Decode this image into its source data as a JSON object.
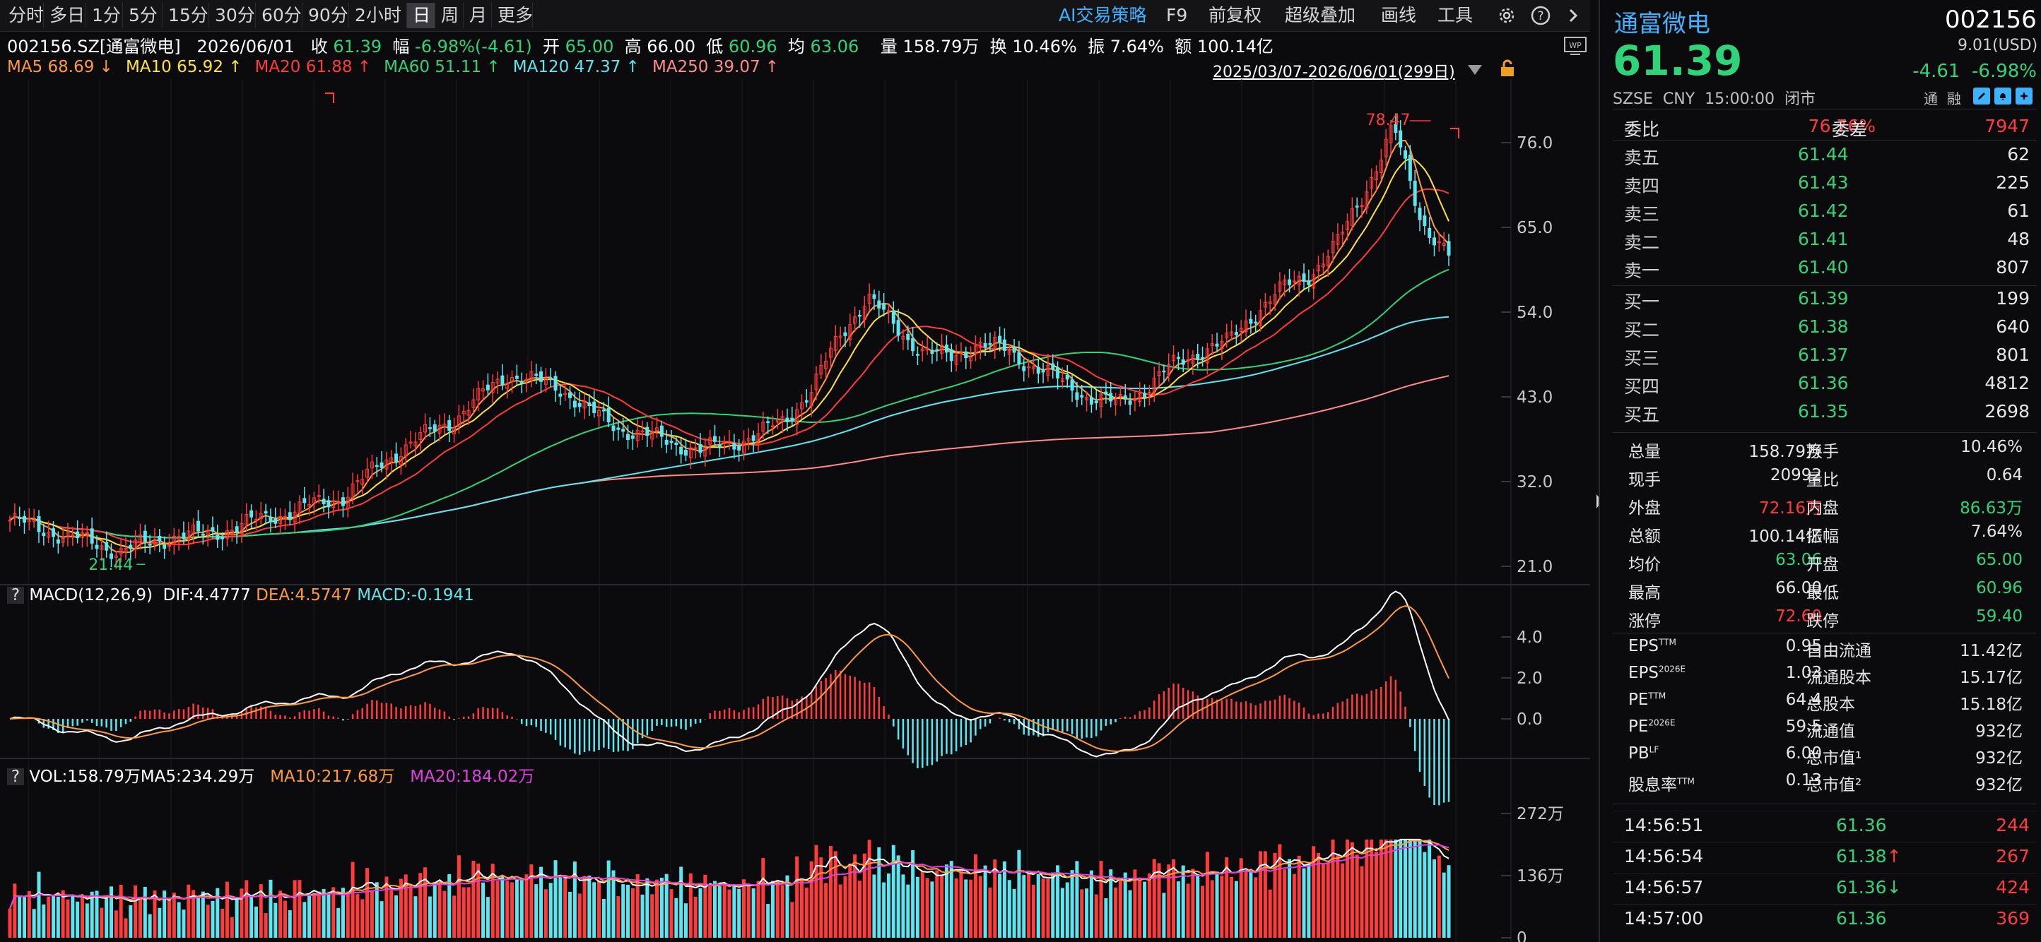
{
  "toolbar": {
    "periods": [
      "分时",
      "多日",
      "1分",
      "5分",
      "15分",
      "30分",
      "60分",
      "90分",
      "2小时",
      "日",
      "周",
      "月",
      "更多"
    ],
    "active": "日",
    "right_items": [
      "AI交易策略",
      "F9",
      "前复权",
      "超级叠加",
      "画线",
      "工具"
    ]
  },
  "info": {
    "code_name": "002156.SZ[通富微电]",
    "date": "2026/06/01",
    "close_label": "收",
    "close": "61.39",
    "change_label": "幅",
    "change": "-6.98%(-4.61)",
    "open_label": "开",
    "open": "65.00",
    "high_label": "高",
    "high": "66.00",
    "low_label": "低",
    "low": "60.96",
    "avg_label": "均",
    "avg": "63.06",
    "vol_label": "量",
    "vol": "158.79万",
    "turn_label": "换",
    "turn": "10.46%",
    "amp_label": "振",
    "amp": "7.64%",
    "amt_label": "额",
    "amt": "100.14亿"
  },
  "ma_legend": [
    {
      "text": "MA5 68.69 ↓",
      "color": "#ff9a3c"
    },
    {
      "text": "MA10 65.92 ↑",
      "color": "#ffe23c"
    },
    {
      "text": "MA20 61.88 ↑",
      "color": "#ff3b3b"
    },
    {
      "text": "MA60 51.11 ↑",
      "color": "#2fd47a"
    },
    {
      "text": "MA120 47.37 ↑",
      "color": "#5ee6f0"
    },
    {
      "text": "MA250 39.07 ↑",
      "color": "#ff8a8a"
    }
  ],
  "range_label": "2025/03/07-2026/06/01(299日)",
  "price_axis": [
    "76.0",
    "65.0",
    "54.0",
    "43.0",
    "32.0",
    "21.0"
  ],
  "annotations": {
    "high": "78.47",
    "low": "21.44"
  },
  "macd": {
    "q": "?",
    "title": "MACD(12,26,9)",
    "dif": "DIF:4.4777",
    "dea": "DEA:4.5747",
    "macd": "MACD:-0.1941",
    "axis": [
      "4.0",
      "2.0",
      "0.0"
    ]
  },
  "vol": {
    "q": "?",
    "title": "VOL:158.79万",
    "ma5": "MA5:234.29万",
    "ma10": "MA10:217.68万",
    "ma20": "MA20:184.02万",
    "axis": [
      "272万",
      "136万",
      "0"
    ]
  },
  "panel": {
    "name": "通富微电",
    "code": "002156",
    "price": "61.39",
    "usd": "9.01(USD)",
    "chg": "-4.61",
    "chg_pct": "-6.98%",
    "exch": "SZSE",
    "cur": "CNY",
    "time": "15:00:00",
    "status": "闭市",
    "mini": [
      "通",
      "融"
    ],
    "weibi_label": "委比",
    "weibi": "76.76%",
    "weicha_label": "委差",
    "weicha": "7947",
    "asks": [
      {
        "label": "卖五",
        "price": "61.44",
        "vol": "62"
      },
      {
        "label": "卖四",
        "price": "61.43",
        "vol": "225"
      },
      {
        "label": "卖三",
        "price": "61.42",
        "vol": "61"
      },
      {
        "label": "卖二",
        "price": "61.41",
        "vol": "48"
      },
      {
        "label": "卖一",
        "price": "61.40",
        "vol": "807"
      }
    ],
    "bids": [
      {
        "label": "买一",
        "price": "61.39",
        "vol": "199"
      },
      {
        "label": "买二",
        "price": "61.38",
        "vol": "640"
      },
      {
        "label": "买三",
        "price": "61.37",
        "vol": "801"
      },
      {
        "label": "买四",
        "price": "61.36",
        "vol": "4812"
      },
      {
        "label": "买五",
        "price": "61.35",
        "vol": "2698"
      }
    ],
    "stats": [
      {
        "l1": "总量",
        "v1": "158.79万",
        "c1": "#e6e6e6",
        "l2": "换手",
        "v2": "10.46%",
        "c2": "#e6e6e6"
      },
      {
        "l1": "现手",
        "v1": "20992",
        "c1": "#e6e6e6",
        "l2": "量比",
        "v2": "0.64",
        "c2": "#e6e6e6"
      },
      {
        "l1": "外盘",
        "v1": "72.16万",
        "c1": "#ff3b3b",
        "l2": "内盘",
        "v2": "86.63万",
        "c2": "#2fd47a"
      },
      {
        "l1": "总额",
        "v1": "100.14亿",
        "c1": "#e6e6e6",
        "l2": "振幅",
        "v2": "7.64%",
        "c2": "#e6e6e6"
      },
      {
        "l1": "均价",
        "v1": "63.06",
        "c1": "#2fd47a",
        "l2": "开盘",
        "v2": "65.00",
        "c2": "#2fd47a"
      },
      {
        "l1": "最高",
        "v1": "66.00",
        "c1": "#e6e6e6",
        "l2": "最低",
        "v2": "60.96",
        "c2": "#2fd47a"
      },
      {
        "l1": "涨停",
        "v1": "72.60",
        "c1": "#ff3b3b",
        "l2": "跌停",
        "v2": "59.40",
        "c2": "#2fd47a"
      }
    ],
    "fund": [
      {
        "l1": "EPS",
        "s1": "TTM",
        "v1": "0.95",
        "l2": "自由流通",
        "v2": "11.42亿"
      },
      {
        "l1": "EPS",
        "s1": "2026E",
        "v1": "1.03",
        "l2": "流通股本",
        "v2": "15.17亿"
      },
      {
        "l1": "PE",
        "s1": "TTM",
        "v1": "64.4",
        "l2": "总股本",
        "v2": "15.18亿"
      },
      {
        "l1": "PE",
        "s1": "2026E",
        "v1": "59.5",
        "l2": "流通值",
        "v2": "932亿"
      },
      {
        "l1": "PB",
        "s1": "LF",
        "v1": "6.00",
        "l2": "总市值¹",
        "v2": "932亿"
      },
      {
        "l1": "股息率",
        "s1": "TTM",
        "v1": "0.13",
        "l2": "总市值²",
        "v2": "932亿"
      }
    ],
    "ticks": [
      {
        "time": "14:56:51",
        "price": "61.36",
        "arrow": "",
        "vol": "244"
      },
      {
        "time": "14:56:54",
        "price": "61.38",
        "arrow": "↑",
        "vol": "267"
      },
      {
        "time": "14:56:57",
        "price": "61.36",
        "arrow": "↓",
        "vol": "424"
      },
      {
        "time": "14:57:00",
        "price": "61.36",
        "arrow": "",
        "vol": "369"
      }
    ]
  },
  "chart_data": {
    "type": "line",
    "title": "",
    "xlabel": "",
    "ylabel": "",
    "x_range": [
      "2025/03/07",
      "2026/06/01"
    ],
    "bars": 299,
    "ylim": [
      21.0,
      80.0
    ],
    "close_trend": [
      27,
      26,
      25,
      24,
      23,
      24,
      25,
      25,
      26,
      27,
      28,
      29,
      30,
      33,
      36,
      38,
      40,
      43,
      46,
      45,
      44,
      41,
      39,
      38,
      37,
      36,
      37,
      38,
      40,
      44,
      51,
      56,
      52,
      49,
      48,
      50,
      49,
      47,
      45,
      43,
      42,
      44,
      47,
      49,
      50,
      54,
      57,
      59,
      63,
      70,
      78,
      66,
      61.39
    ],
    "ma5_last": 68.69,
    "ma10_last": 65.92,
    "ma20_last": 61.88,
    "ma60_last": 51.11,
    "ma120_last": 47.37,
    "ma250_last": 39.07,
    "macd": {
      "dif": 4.4777,
      "dea": 4.5747,
      "macd": -0.1941,
      "ylim": [
        -1.5,
        5.0
      ]
    },
    "volume": {
      "last": "158.79万",
      "ma5": "234.29万",
      "ma10": "217.68万",
      "ma20": "184.02万"
    }
  }
}
